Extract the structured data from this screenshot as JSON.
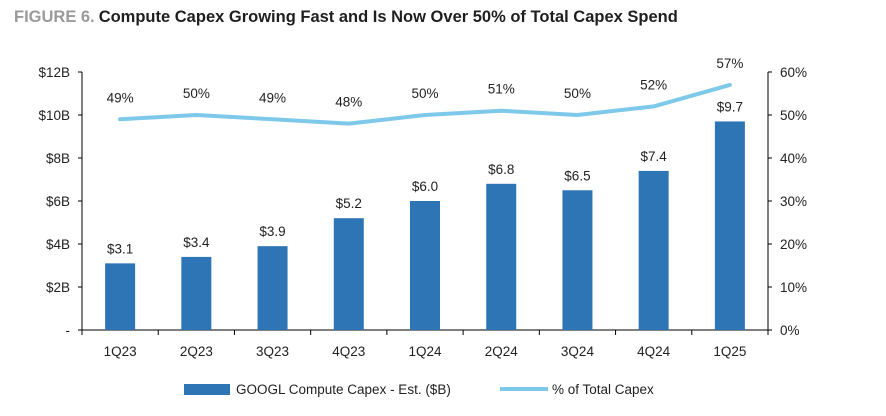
{
  "figure_label": "FIGURE 6.",
  "title": "Compute Capex Growing Fast and Is Now Over 50% of Total Capex Spend",
  "chart_data": {
    "type": "bar",
    "categories": [
      "1Q23",
      "2Q23",
      "3Q23",
      "4Q23",
      "1Q24",
      "2Q24",
      "3Q24",
      "4Q24",
      "1Q25"
    ],
    "series": [
      {
        "name": "GOOGL Compute Capex - Est. ($B)",
        "type": "bar",
        "axis": "left",
        "color": "#2e75b6",
        "values": [
          3.1,
          3.4,
          3.9,
          5.2,
          6.0,
          6.8,
          6.5,
          7.4,
          9.7
        ],
        "labels": [
          "$3.1",
          "$3.4",
          "$3.9",
          "$5.2",
          "$6.0",
          "$6.8",
          "$6.5",
          "$7.4",
          "$9.7"
        ]
      },
      {
        "name": "% of Total Capex",
        "type": "line",
        "axis": "right",
        "color": "#7ec8ea",
        "values": [
          49,
          50,
          49,
          48,
          50,
          51,
          50,
          52,
          57
        ],
        "labels": [
          "49%",
          "50%",
          "49%",
          "48%",
          "50%",
          "51%",
          "50%",
          "52%",
          "57%"
        ]
      }
    ],
    "y_left": {
      "ylim": [
        0,
        12
      ],
      "ticks": [
        0,
        2,
        4,
        6,
        8,
        10,
        12
      ],
      "tick_labels": [
        "-",
        "$2B",
        "$4B",
        "$6B",
        "$8B",
        "$10B",
        "$12B"
      ]
    },
    "y_right": {
      "ylim": [
        0,
        60
      ],
      "ticks": [
        0,
        10,
        20,
        30,
        40,
        50,
        60
      ],
      "tick_labels": [
        "0%",
        "10%",
        "20%",
        "30%",
        "40%",
        "50%",
        "60%"
      ]
    },
    "grid": false,
    "legend": "bottom"
  }
}
